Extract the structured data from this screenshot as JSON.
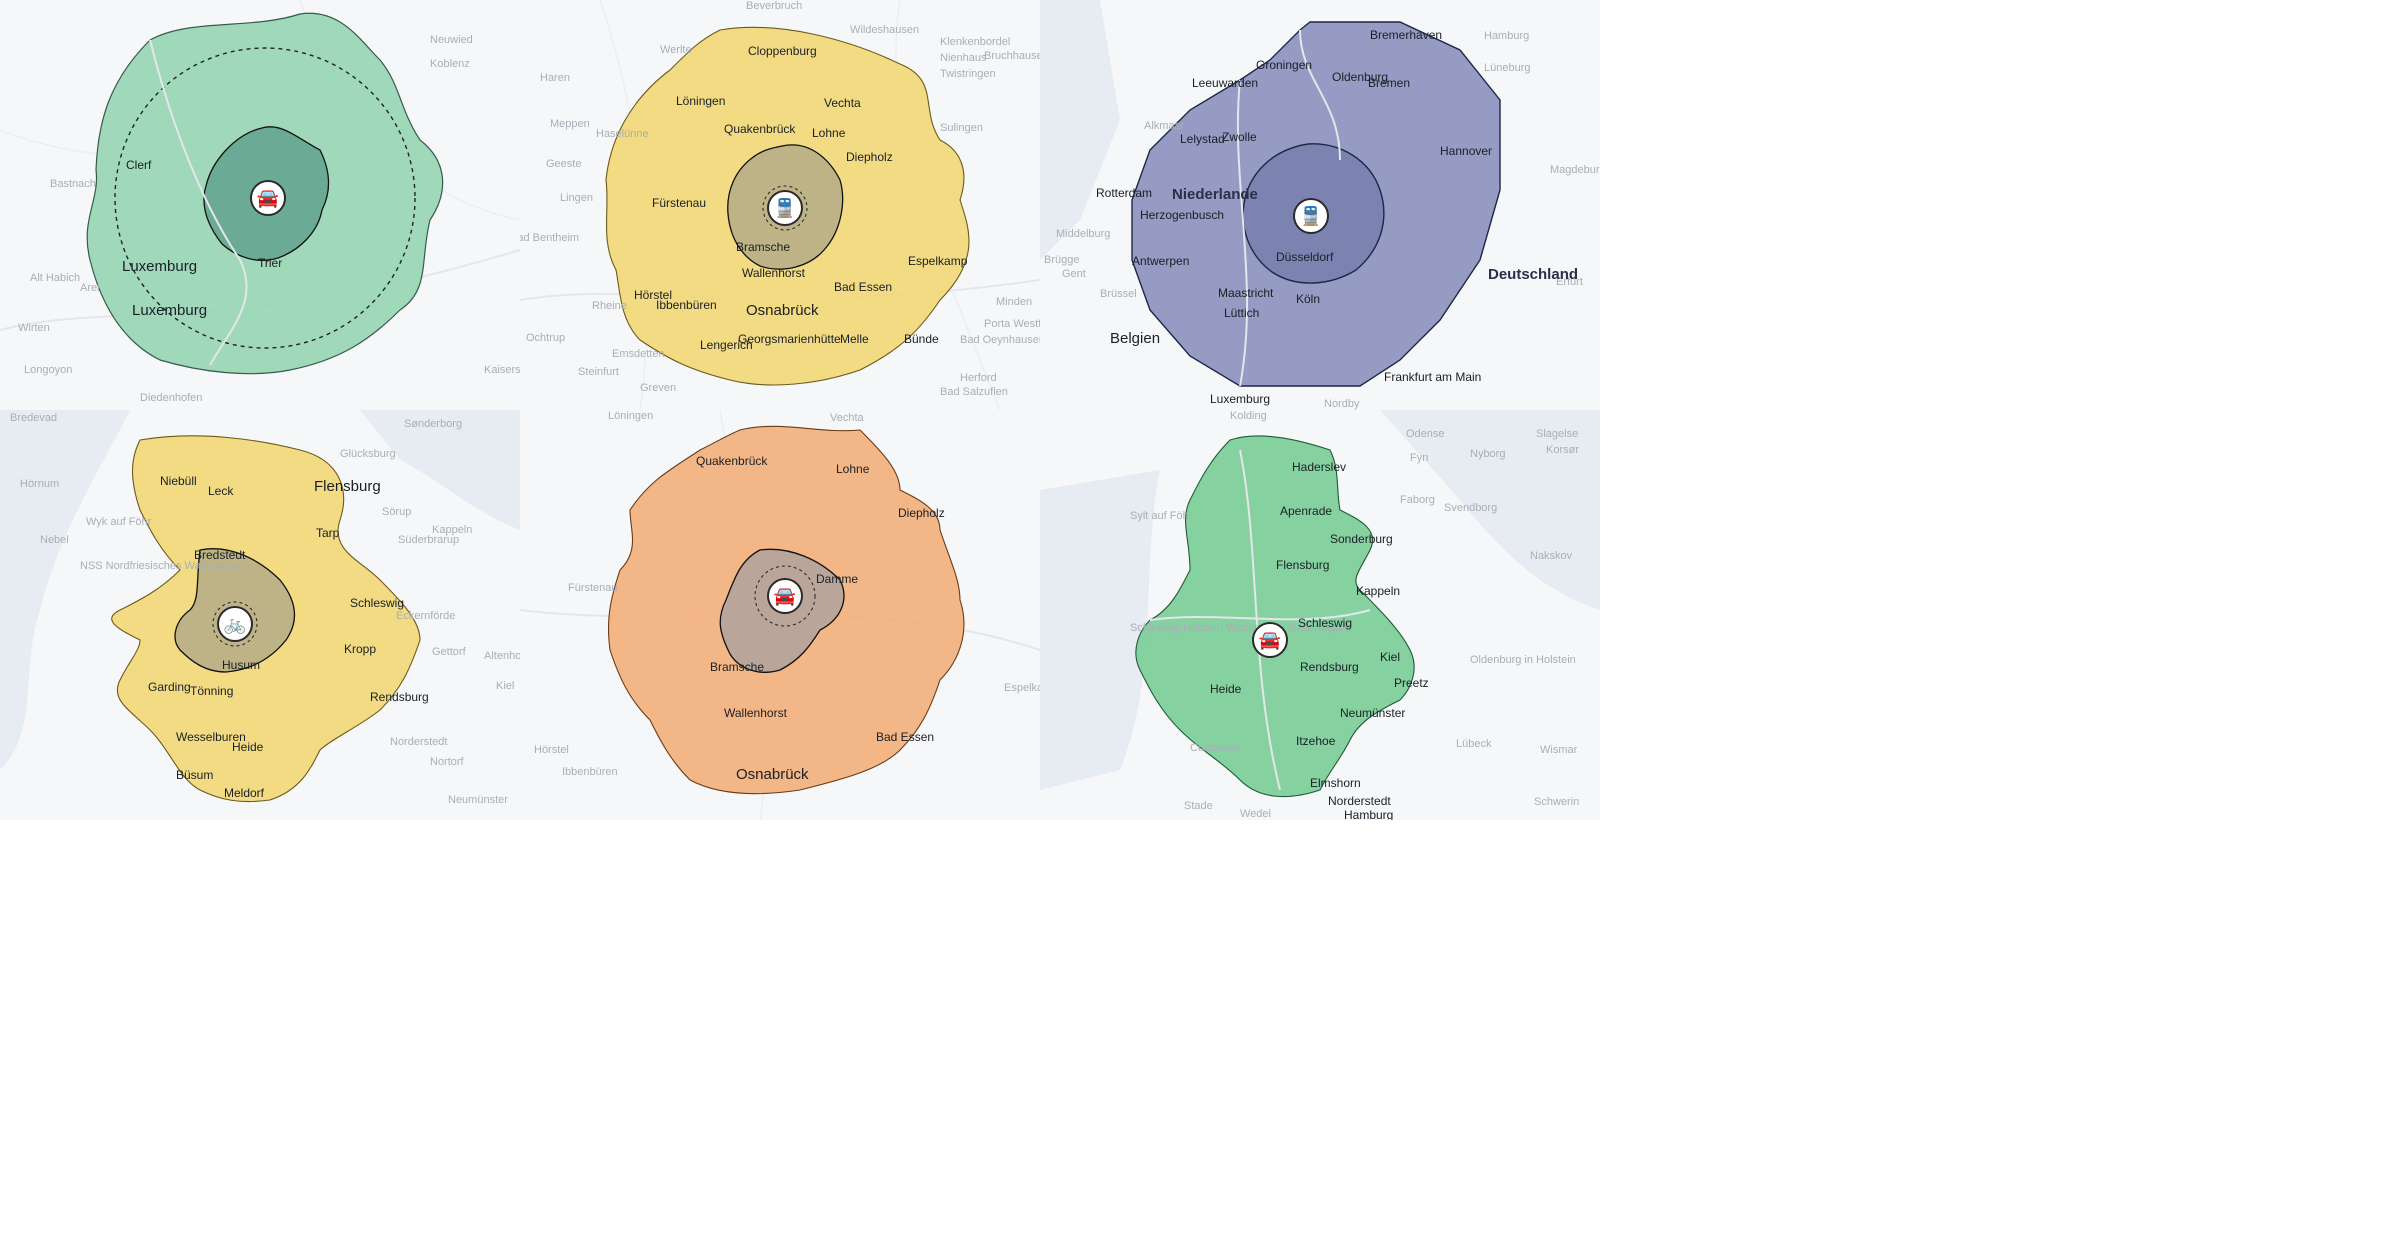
{
  "colors": {
    "green": "#8fd3ae",
    "green_dark": "#6aa896",
    "yellow": "#f2d776",
    "yellow_inner": "#b7ae86",
    "slate": "#8f96bf",
    "slate_inner": "#7a82b0",
    "orange": "#f2b07c",
    "orange_inner": "#b3a39b",
    "green2": "#7fcf9b"
  },
  "panels": [
    {
      "id": "luxemburg",
      "mode_icon": "car-icon",
      "mode_glyph": "🚘",
      "labels": [
        {
          "t": "Clerf",
          "cls": ""
        },
        {
          "t": "Luxemburg",
          "cls": "big"
        },
        {
          "t": "Luxemburg",
          "cls": "big"
        },
        {
          "t": "Trier",
          "cls": ""
        }
      ],
      "basemap": [
        "Neuwied",
        "Koblenz",
        "Bastnach",
        "Alt Habich",
        "Arel",
        "Wirten",
        "Longoyon",
        "Kaiserslau",
        "Diedenhofen"
      ]
    },
    {
      "id": "osnabrueck-train",
      "mode_icon": "train-icon",
      "mode_glyph": "🚆",
      "labels": [
        {
          "t": "Cloppenburg",
          "cls": ""
        },
        {
          "t": "Löningen",
          "cls": ""
        },
        {
          "t": "Vechta",
          "cls": ""
        },
        {
          "t": "Quakenbrück",
          "cls": ""
        },
        {
          "t": "Lohne",
          "cls": ""
        },
        {
          "t": "Diepholz",
          "cls": ""
        },
        {
          "t": "Fürstenau",
          "cls": ""
        },
        {
          "t": "Bramsche",
          "cls": ""
        },
        {
          "t": "Wallenhorst",
          "cls": ""
        },
        {
          "t": "Espelkamp",
          "cls": ""
        },
        {
          "t": "Hörstel",
          "cls": ""
        },
        {
          "t": "Ibbenbüren",
          "cls": ""
        },
        {
          "t": "Osnabrück",
          "cls": "big"
        },
        {
          "t": "Bad Essen",
          "cls": ""
        },
        {
          "t": "Lengerich",
          "cls": ""
        },
        {
          "t": "Georgsmarienhütte",
          "cls": ""
        },
        {
          "t": "Melle",
          "cls": ""
        },
        {
          "t": "Bünde",
          "cls": ""
        }
      ],
      "basemap": [
        "Beverbruch",
        "Wildeshausen",
        "Werlte",
        "Klenkenbordel",
        "Nienhaus",
        "Bruchhausen-Vilsen",
        "Haren",
        "Twistringen",
        "Meppen",
        "Haselünne",
        "Sulingen",
        "Geeste",
        "Lingen",
        "Bad Bentheim",
        "Rheine",
        "Minden",
        "Porta Westfalica",
        "Bad Oeynhausen",
        "Ochtrup",
        "Emsdetten",
        "Steinfurt",
        "Greven",
        "Herford",
        "Bad Salzuflen"
      ]
    },
    {
      "id": "niederlande-deutschland",
      "mode_icon": "train-icon",
      "mode_glyph": "🚆",
      "labels": [
        {
          "t": "Bremerhaven",
          "cls": ""
        },
        {
          "t": "Groningen",
          "cls": ""
        },
        {
          "t": "Leeuwarden",
          "cls": ""
        },
        {
          "t": "Oldenburg",
          "cls": ""
        },
        {
          "t": "Bremen",
          "cls": ""
        },
        {
          "t": "Lelystad",
          "cls": ""
        },
        {
          "t": "Zwolle",
          "cls": ""
        },
        {
          "t": "Hannover",
          "cls": ""
        },
        {
          "t": "Rotterdam",
          "cls": ""
        },
        {
          "t": "Niederlande",
          "cls": "country"
        },
        {
          "t": "Herzogenbusch",
          "cls": ""
        },
        {
          "t": "Antwerpen",
          "cls": ""
        },
        {
          "t": "Düsseldorf",
          "cls": ""
        },
        {
          "t": "Deutschland",
          "cls": "country"
        },
        {
          "t": "Maastricht",
          "cls": ""
        },
        {
          "t": "Köln",
          "cls": ""
        },
        {
          "t": "Lüttich",
          "cls": ""
        },
        {
          "t": "Belgien",
          "cls": "big"
        },
        {
          "t": "Frankfurt am Main",
          "cls": ""
        },
        {
          "t": "Luxemburg",
          "cls": ""
        }
      ],
      "basemap": [
        "Hamburg",
        "Lüneburg",
        "Magdeburg",
        "Erfurt",
        "Gent",
        "Brüssel",
        "Brügge",
        "Middelburg",
        "Alkmaar",
        "Nordby"
      ]
    },
    {
      "id": "nordfriesland-bike",
      "mode_icon": "bicycle-icon",
      "mode_glyph": "🚲",
      "labels": [
        {
          "t": "Niebüll",
          "cls": ""
        },
        {
          "t": "Leck",
          "cls": ""
        },
        {
          "t": "Flensburg",
          "cls": "big"
        },
        {
          "t": "Tarp",
          "cls": ""
        },
        {
          "t": "Bredstedt",
          "cls": ""
        },
        {
          "t": "Schleswig",
          "cls": ""
        },
        {
          "t": "Husum",
          "cls": ""
        },
        {
          "t": "Kropp",
          "cls": ""
        },
        {
          "t": "Garding",
          "cls": ""
        },
        {
          "t": "Tönning",
          "cls": ""
        },
        {
          "t": "Rendsburg",
          "cls": ""
        },
        {
          "t": "Wesselburen",
          "cls": ""
        },
        {
          "t": "Heide",
          "cls": ""
        },
        {
          "t": "Büsum",
          "cls": ""
        },
        {
          "t": "Meldorf",
          "cls": ""
        }
      ],
      "basemap": [
        "Bredevad",
        "Sønderborg",
        "Glücksburg",
        "Hörnum",
        "Sörup",
        "Wyk auf Föhr",
        "Süderbrarup",
        "Kappeln",
        "Nebel",
        "Eckernförde",
        "Gettorf",
        "Altenholz",
        "Kiel",
        "Norderstedt",
        "Nortorf",
        "Neumünster",
        "NSS Nordfriesisches Wattenmeer"
      ]
    },
    {
      "id": "osnabrueck-car",
      "mode_icon": "car-icon",
      "mode_glyph": "🚘",
      "labels": [
        {
          "t": "Quakenbrück",
          "cls": ""
        },
        {
          "t": "Lohne",
          "cls": ""
        },
        {
          "t": "Diepholz",
          "cls": ""
        },
        {
          "t": "Damme",
          "cls": ""
        },
        {
          "t": "Bramsche",
          "cls": ""
        },
        {
          "t": "Wallenhorst",
          "cls": ""
        },
        {
          "t": "Bad Essen",
          "cls": ""
        },
        {
          "t": "Osnabrück",
          "cls": "big"
        }
      ],
      "basemap": [
        "Löningen",
        "Vechta",
        "Fürstenau",
        "Espelkamp",
        "Hörstel",
        "Ibbenbüren"
      ]
    },
    {
      "id": "schleswig-holstein-car",
      "mode_icon": "car-icon",
      "mode_glyph": "🚘",
      "labels": [
        {
          "t": "Haderslev",
          "cls": ""
        },
        {
          "t": "Apenrade",
          "cls": ""
        },
        {
          "t": "Sonderburg",
          "cls": ""
        },
        {
          "t": "Flensburg",
          "cls": ""
        },
        {
          "t": "Kappeln",
          "cls": ""
        },
        {
          "t": "Schleswig",
          "cls": ""
        },
        {
          "t": "Rendsburg",
          "cls": ""
        },
        {
          "t": "Kiel",
          "cls": ""
        },
        {
          "t": "Preetz",
          "cls": ""
        },
        {
          "t": "Heide",
          "cls": ""
        },
        {
          "t": "Neumünster",
          "cls": ""
        },
        {
          "t": "Itzehoe",
          "cls": ""
        },
        {
          "t": "Elmshorn",
          "cls": ""
        },
        {
          "t": "Norderstedt",
          "cls": ""
        },
        {
          "t": "Hamburg",
          "cls": ""
        }
      ],
      "basemap": [
        "Kolding",
        "Odense",
        "Slagelse",
        "Nyborg",
        "Korsør",
        "Fyn",
        "Faborg",
        "Svendborg",
        "Nakskov",
        "Lübeck",
        "Oldenburg in Holstein",
        "Cuxhaven",
        "Stade",
        "Wedel",
        "Wismar",
        "Schwerin",
        "Sylt auf Föhr",
        "Schleswig-Holstein Wattenmeer Nationalpark"
      ]
    }
  ]
}
